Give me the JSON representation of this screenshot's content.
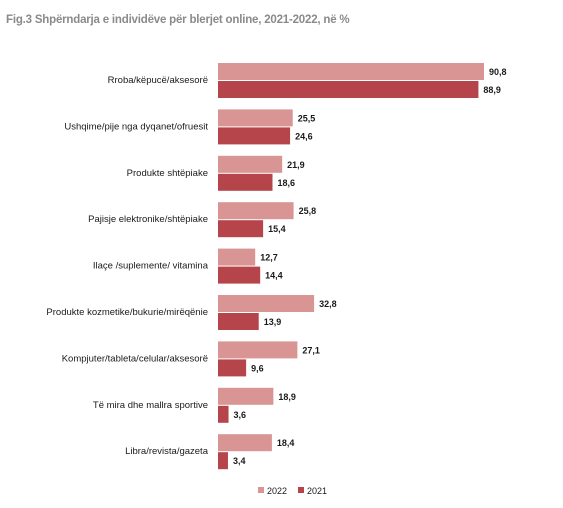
{
  "chart_data": {
    "type": "bar",
    "orientation": "horizontal",
    "title": "Fig.3 Shpërndarja e individëve për blerjet online, 2021-2022, në %",
    "categories": [
      "Rroba/këpucë/aksesorë",
      "Ushqime/pije nga dyqanet/ofruesit",
      "Produkte shtëpiake",
      "Pajisje elektronike/shtëpiake",
      "Ilaçe /suplemente/ vitamina",
      "Produkte kozmetike/bukurie/mirëqënie",
      "Kompjuter/tableta/celular/aksesorë",
      "Të mira dhe mallra sportive",
      "Libra/revista/gazeta"
    ],
    "series": [
      {
        "name": "2022",
        "color": "#d99594",
        "values": [
          90.8,
          25.5,
          21.9,
          25.8,
          12.7,
          32.8,
          27.1,
          18.9,
          18.4
        ],
        "labels": [
          "90,8",
          "25,5",
          "21,9",
          "25,8",
          "12,7",
          "32,8",
          "27,1",
          "18,9",
          "18,4"
        ]
      },
      {
        "name": "2021",
        "color": "#b5454b",
        "values": [
          88.9,
          24.6,
          18.6,
          15.4,
          14.4,
          13.9,
          9.6,
          3.6,
          3.4
        ],
        "labels": [
          "88,9",
          "24,6",
          "18,6",
          "15,4",
          "14,4",
          "13,9",
          "9,6",
          "3,6",
          "3,4"
        ]
      }
    ],
    "xlim": [
      0,
      100
    ],
    "grid": false,
    "legend_position": "bottom-center"
  }
}
